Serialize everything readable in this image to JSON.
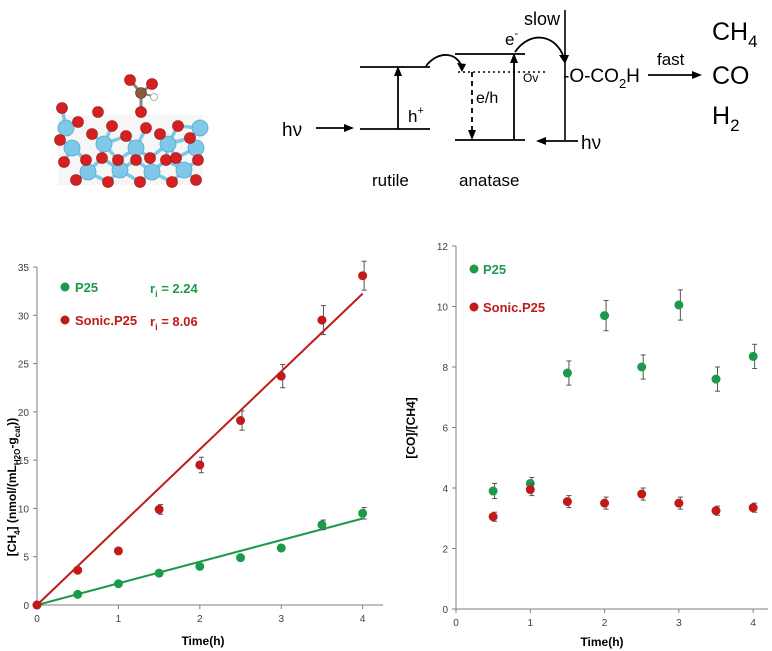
{
  "scheme": {
    "hv_left": "hν",
    "hv_right": "hν",
    "hplus": "h",
    "hplus_sup": "+",
    "eh": "e/h",
    "eminus": "e",
    "eminus_sup": "-",
    "ov": "Ov",
    "slow": "slow",
    "intermediate_pre": "-O-CO",
    "intermediate_sub": "2",
    "intermediate_post": "H",
    "fast": "fast",
    "products": [
      {
        "base": "CH",
        "sub": "4"
      },
      {
        "base": "CO",
        "sub": ""
      },
      {
        "base": "H",
        "sub": "2"
      }
    ],
    "rutile": "rutile",
    "anatase": "anatase",
    "colors": {
      "oxygen": "#d42020",
      "titanium": "#7fc8e8",
      "carbon": "#8b5a3c",
      "hydrogen": "#ffffff"
    }
  },
  "chart_data": [
    {
      "type": "scatter",
      "xlabel": "Time(h)",
      "ylabel_parts": [
        "[CH",
        "4",
        "] (nmol/(mL",
        "H2O",
        "-g",
        "cat",
        "))"
      ],
      "xlim": [
        0,
        4.25
      ],
      "ylim": [
        0,
        35
      ],
      "xticks": [
        0,
        1,
        2,
        3,
        4
      ],
      "yticks": [
        0,
        5,
        10,
        15,
        20,
        25,
        30,
        35
      ],
      "legend_position": "top-left",
      "series": [
        {
          "name": "P25",
          "color": "#1a9a4a",
          "x": [
            0,
            0.5,
            1,
            1.5,
            2,
            2.5,
            3,
            3.5,
            4
          ],
          "y": [
            0,
            1.1,
            2.2,
            3.3,
            4.0,
            4.9,
            5.9,
            8.3,
            9.5
          ],
          "err": [
            0,
            0,
            0,
            0,
            0,
            0,
            0,
            0.5,
            0.6
          ],
          "fit_slope": 2.24,
          "rate_label": "r",
          "rate_sub": "i",
          "rate_value": " = 2.24"
        },
        {
          "name": "Sonic.P25",
          "color": "#c01a1a",
          "x": [
            0,
            0.5,
            1,
            1.5,
            2,
            2.5,
            3,
            3.5,
            4
          ],
          "y": [
            0,
            3.6,
            5.6,
            9.9,
            14.5,
            19.1,
            23.7,
            29.5,
            34.1
          ],
          "err": [
            0,
            0,
            0,
            0.5,
            0.8,
            1.0,
            1.2,
            1.5,
            1.5
          ],
          "fit_slope": 8.06,
          "rate_label": "r",
          "rate_sub": "i",
          "rate_value": " = 8.06"
        }
      ]
    },
    {
      "type": "scatter",
      "xlabel": "Time(h)",
      "ylabel": "[CO]/[CH4]",
      "xlim": [
        0,
        4.2
      ],
      "ylim": [
        0,
        12
      ],
      "xticks": [
        0,
        1,
        2,
        3,
        4
      ],
      "yticks": [
        0,
        2,
        4,
        6,
        8,
        10,
        12
      ],
      "legend_position": "top-left",
      "series": [
        {
          "name": "P25",
          "color": "#1a9a4a",
          "x": [
            0.5,
            1,
            1.5,
            2,
            2.5,
            3,
            3.5,
            4
          ],
          "y": [
            3.9,
            4.15,
            7.8,
            9.7,
            8.0,
            10.05,
            7.6,
            8.35
          ],
          "err": [
            0.25,
            0.2,
            0.4,
            0.5,
            0.4,
            0.5,
            0.4,
            0.4
          ]
        },
        {
          "name": "Sonic.P25",
          "color": "#c01a1a",
          "x": [
            0.5,
            1,
            1.5,
            2,
            2.5,
            3,
            3.5,
            4
          ],
          "y": [
            3.05,
            3.95,
            3.55,
            3.5,
            3.8,
            3.5,
            3.25,
            3.35
          ],
          "err": [
            0.15,
            0.2,
            0.2,
            0.2,
            0.2,
            0.2,
            0.15,
            0.15
          ]
        }
      ]
    }
  ]
}
